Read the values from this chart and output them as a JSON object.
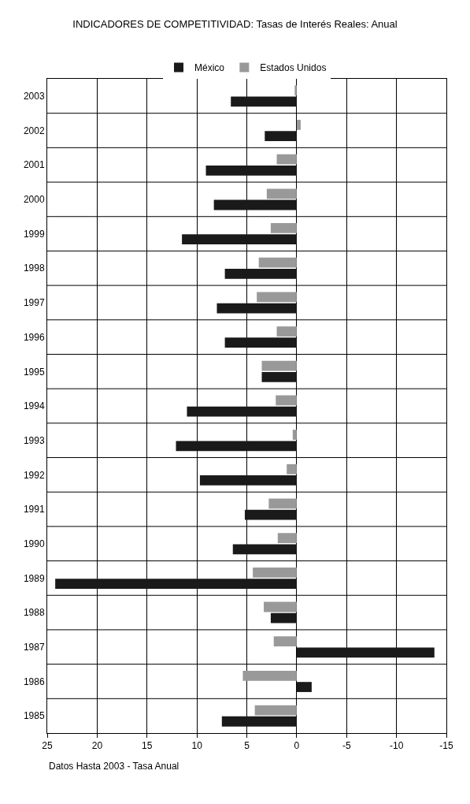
{
  "chart_data": {
    "type": "bar",
    "orientation": "horizontal",
    "title": "INDICADORES DE COMPETITIVIDAD: Tasas de Interés Reales: Anual",
    "categories": [
      "2003",
      "2002",
      "2001",
      "2000",
      "1999",
      "1998",
      "1997",
      "1996",
      "1995",
      "1994",
      "1993",
      "1992",
      "1991",
      "1990",
      "1989",
      "1988",
      "1987",
      "1986",
      "1985"
    ],
    "series": [
      {
        "name": "México",
        "color": "#1a1a1a",
        "values": [
          6.6,
          3.2,
          9.1,
          8.3,
          11.5,
          7.2,
          8.0,
          7.2,
          3.5,
          11.0,
          12.1,
          9.7,
          5.2,
          6.4,
          24.2,
          2.6,
          -13.8,
          -1.5,
          7.5
        ]
      },
      {
        "name": "Estados Unidos",
        "color": "#999999",
        "values": [
          0.2,
          -0.4,
          2.0,
          3.0,
          2.6,
          3.8,
          4.0,
          2.0,
          3.5,
          2.1,
          0.4,
          1.0,
          2.8,
          1.9,
          4.4,
          3.3,
          2.3,
          5.4,
          4.2
        ]
      }
    ],
    "xlim": [
      25,
      -15
    ],
    "xticks": [
      25,
      20,
      15,
      10,
      5,
      0,
      -5,
      -10,
      -15
    ],
    "grid": true,
    "legend": "top",
    "annotations": [
      "Datos Hasta 2003 - Tasa Anual"
    ]
  }
}
